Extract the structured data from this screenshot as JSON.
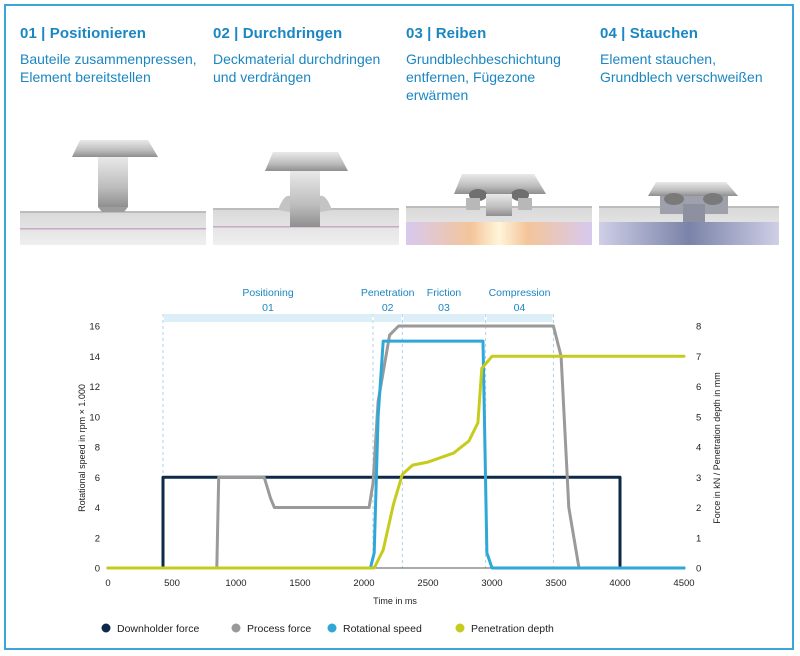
{
  "steps": [
    {
      "title": "01 | Positionieren",
      "desc": "Bauteile zusammenpressen, Element bereitstellen"
    },
    {
      "title": "02 | Durchdringen",
      "desc": "Deckmaterial durchdringen und verdrängen"
    },
    {
      "title": "03 | Reiben",
      "desc": "Grundblechbeschichtung entfernen, Fügezone erwärmen"
    },
    {
      "title": "04 | Stauchen",
      "desc": "Element stauchen, Grundblech verschweißen"
    }
  ],
  "colors": {
    "accent": "#1a86c2",
    "frame": "#3aa6d8"
  },
  "chart_data": {
    "type": "line",
    "xlabel": "Time in ms",
    "ylabel_left": "Rotational speed in rpm × 1.000",
    "ylabel_right": "Force in kN / Penetration depth in mm",
    "xlim": [
      0,
      4500
    ],
    "ylim_left": [
      0,
      16
    ],
    "ylim_right": [
      0,
      8
    ],
    "xticks": [
      0,
      500,
      1000,
      1500,
      2000,
      2500,
      3000,
      3500,
      4000,
      4500
    ],
    "yticks_left": [
      0,
      2,
      4,
      6,
      8,
      10,
      12,
      14,
      16
    ],
    "yticks_right": [
      0,
      1,
      2,
      3,
      4,
      5,
      6,
      7,
      8
    ],
    "phases": [
      {
        "name": "Positioning",
        "number": "01",
        "start": 430,
        "end": 2070
      },
      {
        "name": "Penetration",
        "number": "02",
        "start": 2070,
        "end": 2300
      },
      {
        "name": "Friction",
        "number": "03",
        "start": 2300,
        "end": 2950
      },
      {
        "name": "Compression",
        "number": "04",
        "start": 2950,
        "end": 3480
      }
    ],
    "series": [
      {
        "name": "Downholder force",
        "axis": "right",
        "color": "#0e2a4a",
        "x": [
          0,
          430,
          430,
          4000,
          4000,
          4500
        ],
        "y": [
          0,
          0,
          3,
          3,
          0,
          0
        ]
      },
      {
        "name": "Process force",
        "axis": "right",
        "color": "#9a9a9a",
        "x": [
          850,
          865,
          1220,
          1270,
          1300,
          2040,
          2070,
          2110,
          2200,
          2270,
          3480,
          3540,
          3600,
          3680
        ],
        "y": [
          0,
          3,
          3,
          2.3,
          2,
          2,
          2.8,
          5.5,
          7.7,
          8,
          8,
          7,
          2,
          0
        ]
      },
      {
        "name": "Rotational speed",
        "axis": "left",
        "color": "#2fa8d8",
        "x": [
          0,
          2050,
          2080,
          2110,
          2150,
          2930,
          2960,
          3000,
          4500
        ],
        "y": [
          0,
          0,
          1,
          10,
          15,
          15,
          1,
          0,
          0
        ]
      },
      {
        "name": "Penetration depth",
        "axis": "right",
        "color": "#c5cc1e",
        "x": [
          0,
          2080,
          2150,
          2230,
          2300,
          2380,
          2500,
          2700,
          2820,
          2890,
          2920,
          3000,
          3500,
          4500
        ],
        "y": [
          0,
          0,
          0.6,
          2.1,
          3.1,
          3.4,
          3.5,
          3.8,
          4.2,
          4.8,
          6.6,
          7.0,
          7.0,
          7.0
        ]
      }
    ],
    "legend_position": "bottom",
    "grid": false
  }
}
